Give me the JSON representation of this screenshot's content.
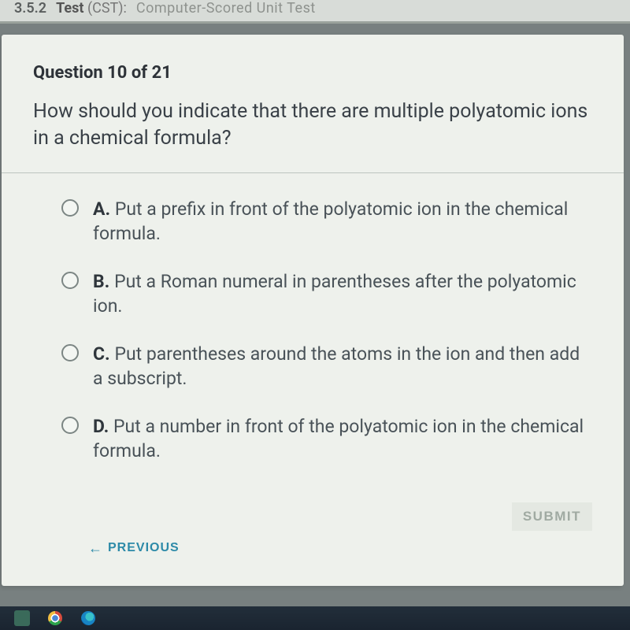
{
  "header": {
    "section_num": "3.5.2",
    "test_label": "Test",
    "cst_label": "(CST):",
    "description": "Computer-Scored Unit Test"
  },
  "question": {
    "counter": "Question 10 of 21",
    "text": "How should you indicate that there are multiple polyatomic ions in a chemical formula?"
  },
  "answers": {
    "a": {
      "letter": "A.",
      "text": " Put a prefix in front of the polyatomic ion in the chemical formula."
    },
    "b": {
      "letter": "B.",
      "text": " Put a Roman numeral in parentheses after the polyatomic ion."
    },
    "c": {
      "letter": "C.",
      "text": " Put parentheses around the atoms in the ion and then add a subscript."
    },
    "d": {
      "letter": "D.",
      "text": " Put a number in front of the polyatomic ion in the chemical formula."
    }
  },
  "nav": {
    "previous": "PREVIOUS",
    "submit": "SUBMIT"
  },
  "colors": {
    "page_bg": "#788080",
    "card_bg": "#eef1ec",
    "accent": "#2d8aa8",
    "text_dark": "#2d3238",
    "text_body": "#495258"
  }
}
